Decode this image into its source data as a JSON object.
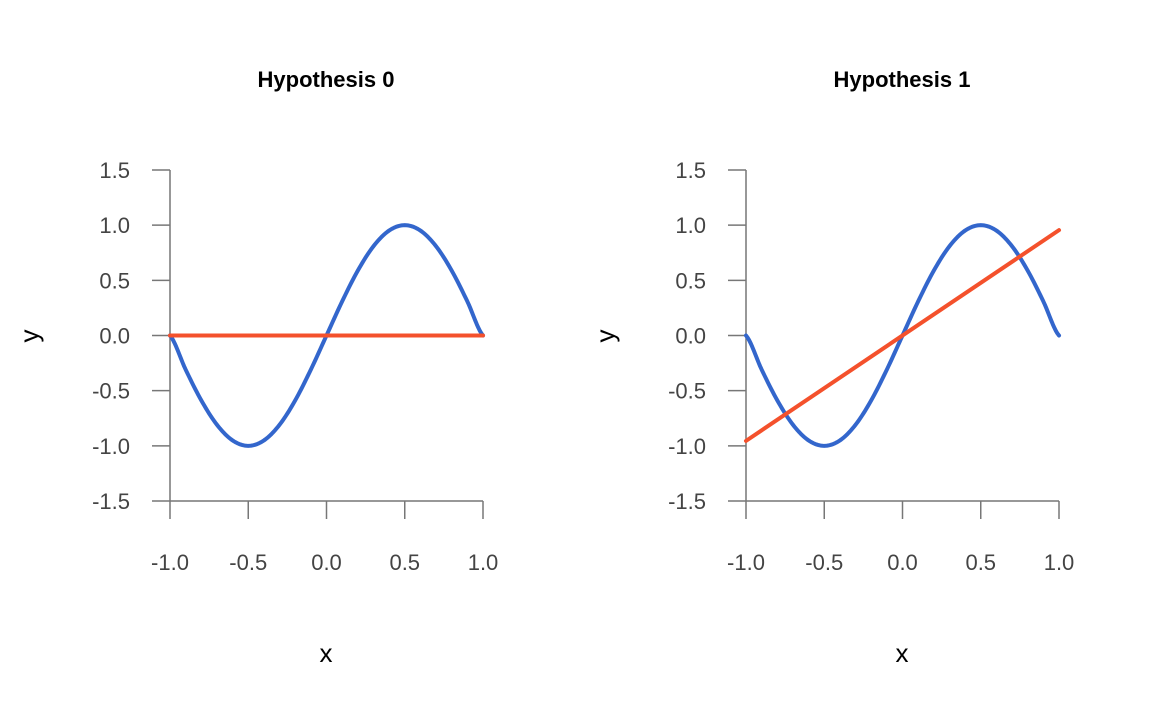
{
  "chart_data": [
    {
      "type": "line",
      "title": "Hypothesis 0",
      "xlabel": "x",
      "ylabel": "y",
      "xlim": [
        -1.0,
        1.0
      ],
      "ylim": [
        -1.5,
        1.5
      ],
      "xticks": [
        "-1.0",
        "-0.5",
        "0.0",
        "0.5",
        "1.0"
      ],
      "yticks": [
        "1.5",
        "1.0",
        "0.5",
        "0.0",
        "-0.5",
        "-1.0",
        "-1.5"
      ],
      "grid": false,
      "series": [
        {
          "color": "#3366cc",
          "x": [
            -1.0,
            -0.9,
            -0.8,
            -0.7,
            -0.6,
            -0.5,
            -0.4,
            -0.3,
            -0.2,
            -0.1,
            0.0,
            0.1,
            0.2,
            0.3,
            0.4,
            0.5,
            0.6,
            0.7,
            0.8,
            0.9,
            1.0
          ],
          "y": [
            0.0,
            -0.309,
            -0.588,
            -0.809,
            -0.951,
            -1.0,
            -0.951,
            -0.809,
            -0.588,
            -0.309,
            0.0,
            0.309,
            0.588,
            0.809,
            0.951,
            1.0,
            0.951,
            0.809,
            0.588,
            0.309,
            0.0
          ]
        },
        {
          "color": "#f4512c",
          "x": [
            -1.0,
            1.0
          ],
          "y": [
            0.0,
            0.0
          ]
        }
      ]
    },
    {
      "type": "line",
      "title": "Hypothesis 1",
      "xlabel": "x",
      "ylabel": "y",
      "xlim": [
        -1.0,
        1.0
      ],
      "ylim": [
        -1.5,
        1.5
      ],
      "xticks": [
        "-1.0",
        "-0.5",
        "0.0",
        "0.5",
        "1.0"
      ],
      "yticks": [
        "1.5",
        "1.0",
        "0.5",
        "0.0",
        "-0.5",
        "-1.0",
        "-1.5"
      ],
      "grid": false,
      "series": [
        {
          "color": "#3366cc",
          "x": [
            -1.0,
            -0.9,
            -0.8,
            -0.7,
            -0.6,
            -0.5,
            -0.4,
            -0.3,
            -0.2,
            -0.1,
            0.0,
            0.1,
            0.2,
            0.3,
            0.4,
            0.5,
            0.6,
            0.7,
            0.8,
            0.9,
            1.0
          ],
          "y": [
            0.0,
            -0.309,
            -0.588,
            -0.809,
            -0.951,
            -1.0,
            -0.951,
            -0.809,
            -0.588,
            -0.309,
            0.0,
            0.309,
            0.588,
            0.809,
            0.951,
            1.0,
            0.951,
            0.809,
            0.588,
            0.309,
            0.0
          ]
        },
        {
          "color": "#f4512c",
          "x": [
            -1.0,
            1.0
          ],
          "y": [
            -0.955,
            0.955
          ]
        }
      ]
    }
  ]
}
